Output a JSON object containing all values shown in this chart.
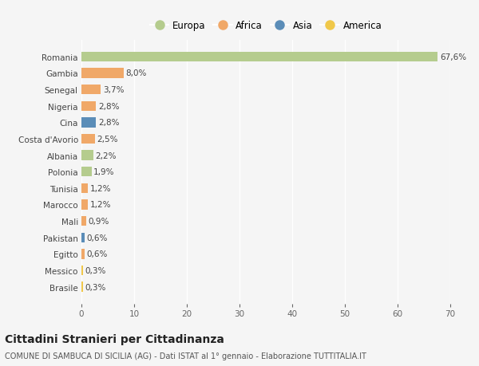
{
  "countries": [
    "Romania",
    "Gambia",
    "Senegal",
    "Nigeria",
    "Cina",
    "Costa d'Avorio",
    "Albania",
    "Polonia",
    "Tunisia",
    "Marocco",
    "Mali",
    "Pakistan",
    "Egitto",
    "Messico",
    "Brasile"
  ],
  "values": [
    67.6,
    8.0,
    3.7,
    2.8,
    2.8,
    2.5,
    2.2,
    1.9,
    1.2,
    1.2,
    0.9,
    0.6,
    0.6,
    0.3,
    0.3
  ],
  "labels": [
    "67,6%",
    "8,0%",
    "3,7%",
    "2,8%",
    "2,8%",
    "2,5%",
    "2,2%",
    "1,9%",
    "1,2%",
    "1,2%",
    "0,9%",
    "0,6%",
    "0,6%",
    "0,3%",
    "0,3%"
  ],
  "continents": [
    "Europa",
    "Africa",
    "Africa",
    "Africa",
    "Asia",
    "Africa",
    "Europa",
    "Europa",
    "Africa",
    "Africa",
    "Africa",
    "Asia",
    "Africa",
    "America",
    "America"
  ],
  "continent_colors": {
    "Europa": "#b5cc8e",
    "Africa": "#f0a868",
    "Asia": "#5b8db8",
    "America": "#f0c84a"
  },
  "legend_order": [
    "Europa",
    "Africa",
    "Asia",
    "America"
  ],
  "background_color": "#f5f5f5",
  "grid_color": "#ffffff",
  "title": "Cittadini Stranieri per Cittadinanza",
  "subtitle": "COMUNE DI SAMBUCA DI SICILIA (AG) - Dati ISTAT al 1° gennaio - Elaborazione TUTTITALIA.IT",
  "xlim": [
    0,
    70
  ],
  "xticks": [
    0,
    10,
    20,
    30,
    40,
    50,
    60,
    70
  ],
  "bar_height": 0.6,
  "label_fontsize": 7.5,
  "tick_fontsize": 7.5,
  "ylabel_fontsize": 7.5,
  "legend_fontsize": 8.5,
  "title_fontsize": 10,
  "subtitle_fontsize": 7
}
